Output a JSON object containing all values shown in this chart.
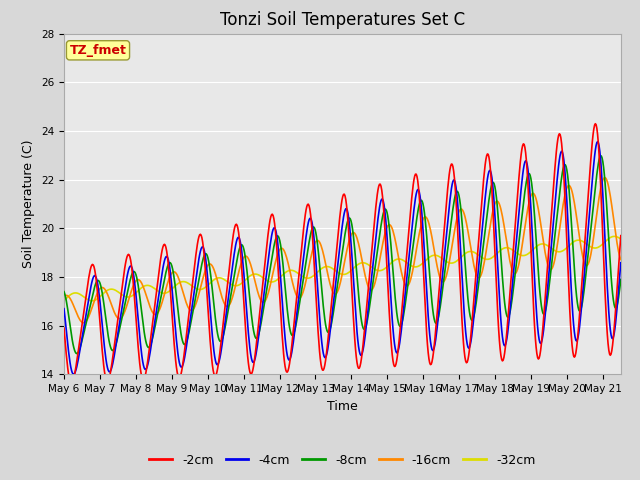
{
  "title": "Tonzi Soil Temperatures Set C",
  "xlabel": "Time",
  "ylabel": "Soil Temperature (C)",
  "ylim": [
    14,
    28
  ],
  "x_tick_labels": [
    "May 6",
    "May 7",
    "May 8",
    "May 9",
    "May 10",
    "May 11",
    "May 12",
    "May 13",
    "May 14",
    "May 15",
    "May 16",
    "May 17",
    "May 18",
    "May 19",
    "May 20",
    "May 21"
  ],
  "annotation_text": "TZ_fmet",
  "annotation_color": "#cc0000",
  "annotation_bg": "#ffff99",
  "annotation_border": "#999933",
  "series_colors": [
    "#ff0000",
    "#0000ee",
    "#009900",
    "#ff8800",
    "#dddd00"
  ],
  "series_labels": [
    "-2cm",
    "-4cm",
    "-8cm",
    "-16cm",
    "-32cm"
  ],
  "line_width": 1.2,
  "bg_color": "#e8e8e8",
  "grid_color": "#ffffff",
  "title_fontsize": 12,
  "label_fontsize": 9,
  "tick_fontsize": 7.5
}
